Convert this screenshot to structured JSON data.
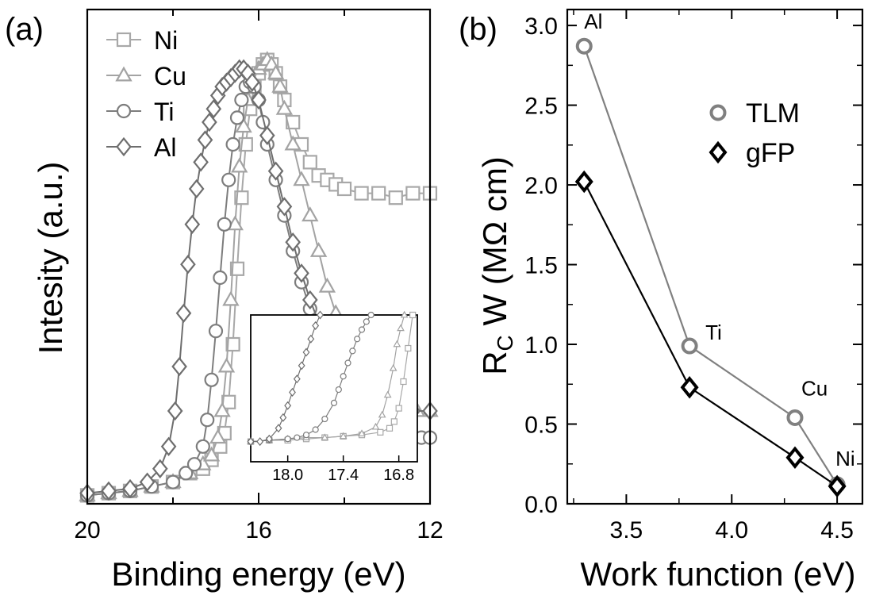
{
  "chart_data": [
    {
      "type": "line",
      "panel_label": "(a)",
      "xlabel": "Binding energy (eV)",
      "ylabel": "Intesity (a.u.)",
      "xlim": [
        20,
        12
      ],
      "x_ticks": [
        "20",
        "16",
        "12"
      ],
      "legend_position": "top-left",
      "series": [
        {
          "name": "Ni",
          "marker": "square",
          "color": "#a8a8a8",
          "x": [
            20.0,
            19.5,
            19.0,
            18.5,
            18.0,
            17.6,
            17.3,
            17.1,
            16.9,
            16.8,
            16.7,
            16.6,
            16.5,
            16.4,
            16.3,
            16.2,
            16.1,
            16.0,
            15.9,
            15.8,
            15.7,
            15.6,
            15.5,
            15.4,
            15.2,
            15.0,
            14.8,
            14.6,
            14.4,
            14.2,
            14.0,
            13.6,
            13.2,
            12.8,
            12.4,
            12.0
          ],
          "y": [
            0.01,
            0.015,
            0.02,
            0.03,
            0.04,
            0.06,
            0.07,
            0.09,
            0.12,
            0.15,
            0.22,
            0.35,
            0.52,
            0.68,
            0.8,
            0.88,
            0.93,
            0.96,
            0.98,
            0.99,
            0.98,
            0.96,
            0.93,
            0.9,
            0.85,
            0.8,
            0.76,
            0.73,
            0.72,
            0.71,
            0.7,
            0.69,
            0.69,
            0.68,
            0.69,
            0.69
          ]
        },
        {
          "name": "Cu",
          "marker": "triangle",
          "color": "#a3a3a3",
          "x": [
            20.0,
            19.5,
            19.0,
            18.5,
            18.0,
            17.6,
            17.3,
            17.1,
            16.95,
            16.85,
            16.75,
            16.65,
            16.55,
            16.45,
            16.35,
            16.25,
            16.15,
            16.0,
            15.9,
            15.8,
            15.7,
            15.6,
            15.5,
            15.4,
            15.2,
            15.0,
            14.8,
            14.6,
            14.4,
            14.2,
            14.0,
            13.8,
            13.6,
            13.4,
            13.2,
            13.0,
            12.6,
            12.3,
            12.0
          ],
          "y": [
            0.01,
            0.015,
            0.02,
            0.03,
            0.04,
            0.06,
            0.08,
            0.1,
            0.14,
            0.2,
            0.3,
            0.45,
            0.62,
            0.75,
            0.84,
            0.9,
            0.94,
            0.97,
            0.98,
            0.99,
            0.98,
            0.96,
            0.93,
            0.88,
            0.8,
            0.72,
            0.64,
            0.56,
            0.48,
            0.42,
            0.36,
            0.32,
            0.28,
            0.26,
            0.24,
            0.23,
            0.21,
            0.2,
            0.2
          ]
        },
        {
          "name": "Ti",
          "marker": "circle",
          "color": "#7d7d7d",
          "x": [
            20.0,
            19.5,
            19.0,
            18.5,
            18.0,
            17.7,
            17.5,
            17.3,
            17.2,
            17.1,
            17.0,
            16.9,
            16.8,
            16.7,
            16.6,
            16.5,
            16.4,
            16.3,
            16.2,
            16.1,
            16.0,
            15.9,
            15.8,
            15.6,
            15.4,
            15.2,
            15.0,
            14.8,
            14.6,
            14.4,
            14.2,
            14.0,
            13.8,
            13.6,
            13.4,
            13.2,
            13.0,
            12.8,
            12.6,
            12.4,
            12.2,
            12.0
          ],
          "y": [
            0.01,
            0.015,
            0.02,
            0.03,
            0.04,
            0.06,
            0.08,
            0.12,
            0.18,
            0.27,
            0.38,
            0.5,
            0.62,
            0.72,
            0.8,
            0.86,
            0.9,
            0.93,
            0.94,
            0.93,
            0.9,
            0.85,
            0.8,
            0.72,
            0.64,
            0.56,
            0.49,
            0.43,
            0.38,
            0.33,
            0.3,
            0.27,
            0.24,
            0.22,
            0.2,
            0.18,
            0.16,
            0.15,
            0.15,
            0.14,
            0.14,
            0.14
          ]
        },
        {
          "name": "Al",
          "marker": "diamond",
          "color": "#6e6e6e",
          "x": [
            20.0,
            19.5,
            19.0,
            18.6,
            18.3,
            18.1,
            17.95,
            17.85,
            17.75,
            17.65,
            17.55,
            17.45,
            17.35,
            17.25,
            17.15,
            17.05,
            16.95,
            16.85,
            16.75,
            16.65,
            16.55,
            16.45,
            16.35,
            16.25,
            16.15,
            16.0,
            15.8,
            15.6,
            15.4,
            15.2,
            15.0,
            14.8,
            14.6,
            14.4,
            14.2,
            14.0,
            13.6,
            13.2,
            12.8,
            12.4,
            12.0
          ],
          "y": [
            0.015,
            0.02,
            0.025,
            0.04,
            0.07,
            0.12,
            0.2,
            0.3,
            0.42,
            0.53,
            0.62,
            0.7,
            0.76,
            0.81,
            0.85,
            0.88,
            0.91,
            0.93,
            0.94,
            0.95,
            0.96,
            0.97,
            0.97,
            0.96,
            0.94,
            0.9,
            0.82,
            0.74,
            0.66,
            0.58,
            0.51,
            0.45,
            0.4,
            0.35,
            0.3,
            0.26,
            0.21,
            0.19,
            0.19,
            0.2,
            0.2
          ]
        }
      ],
      "inset": {
        "xlim": [
          18.4,
          16.6
        ],
        "x_ticks": [
          "18.0",
          "17.4",
          "16.8"
        ],
        "series": [
          {
            "name": "Ni",
            "marker": "square",
            "x": [
              18.4,
              18.2,
              18.0,
              17.8,
              17.6,
              17.4,
              17.2,
              17.0,
              16.9,
              16.85,
              16.8,
              16.75,
              16.7,
              16.65
            ],
            "y": [
              0.05,
              0.06,
              0.06,
              0.07,
              0.08,
              0.09,
              0.1,
              0.12,
              0.15,
              0.2,
              0.3,
              0.5,
              0.75,
              1.0
            ]
          },
          {
            "name": "Cu",
            "marker": "triangle",
            "x": [
              18.4,
              18.2,
              18.0,
              17.8,
              17.6,
              17.4,
              17.2,
              17.05,
              16.98,
              16.92,
              16.86,
              16.82,
              16.78,
              16.74
            ],
            "y": [
              0.05,
              0.06,
              0.07,
              0.08,
              0.08,
              0.09,
              0.11,
              0.16,
              0.25,
              0.4,
              0.6,
              0.78,
              0.9,
              1.0
            ]
          },
          {
            "name": "Ti",
            "marker": "circle",
            "x": [
              18.4,
              18.2,
              18.0,
              17.9,
              17.8,
              17.7,
              17.6,
              17.5,
              17.45,
              17.4,
              17.35,
              17.3,
              17.25,
              17.2,
              17.15,
              17.1
            ],
            "y": [
              0.05,
              0.06,
              0.07,
              0.08,
              0.1,
              0.14,
              0.22,
              0.34,
              0.44,
              0.54,
              0.64,
              0.73,
              0.82,
              0.89,
              0.95,
              1.0
            ]
          },
          {
            "name": "Al",
            "marker": "diamond",
            "x": [
              18.4,
              18.3,
              18.2,
              18.1,
              18.05,
              18.0,
              17.95,
              17.9,
              17.85,
              17.8,
              17.75,
              17.7,
              17.65
            ],
            "y": [
              0.05,
              0.05,
              0.07,
              0.15,
              0.23,
              0.32,
              0.42,
              0.52,
              0.62,
              0.72,
              0.82,
              0.92,
              1.0
            ]
          }
        ]
      }
    },
    {
      "type": "line",
      "panel_label": "(b)",
      "xlabel": "Work function (eV)",
      "ylabel_main": "R",
      "ylabel_sub": "C",
      "ylabel_rest": " W (MΩ cm)",
      "xlim": [
        3.22,
        4.62
      ],
      "ylim": [
        0.0,
        3.1
      ],
      "x_ticks": [
        3.5,
        4.0,
        4.5
      ],
      "x_tick_labels": [
        "3.5",
        "4.0",
        "4.5"
      ],
      "y_ticks": [
        0.0,
        0.5,
        1.0,
        1.5,
        2.0,
        2.5,
        3.0
      ],
      "y_tick_labels": [
        "0.0",
        "0.5",
        "1.0",
        "1.5",
        "2.0",
        "2.5",
        "3.0"
      ],
      "legend_position": "top-right",
      "series": [
        {
          "name": "TLM",
          "marker": "circle",
          "color": "#808080",
          "x": [
            3.3,
            3.8,
            4.3,
            4.5
          ],
          "y": [
            2.87,
            0.99,
            0.54,
            0.12
          ]
        },
        {
          "name": "gFP",
          "marker": "diamond",
          "color": "#000000",
          "x": [
            3.3,
            3.8,
            4.3,
            4.5
          ],
          "y": [
            2.02,
            0.73,
            0.29,
            0.11
          ]
        }
      ],
      "annotations": [
        "Al",
        "Ti",
        "Cu",
        "Ni"
      ]
    }
  ]
}
